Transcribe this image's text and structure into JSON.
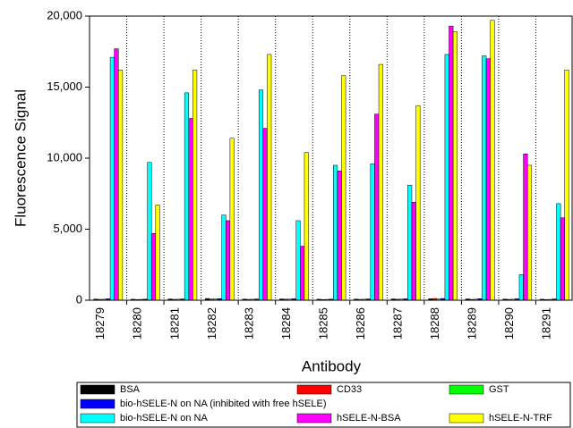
{
  "chart_data": {
    "type": "bar",
    "x_label": "Antibody",
    "y_label": "Fluorescence Signal",
    "categories": [
      "18279",
      "18280",
      "18281",
      "18282",
      "18283",
      "18284",
      "18285",
      "18286",
      "18287",
      "18288",
      "18289",
      "18290",
      "18291"
    ],
    "series": [
      {
        "name": "BSA",
        "color": "#000000",
        "values": [
          80,
          70,
          90,
          120,
          80,
          90,
          70,
          80,
          90,
          100,
          90,
          80,
          70
        ]
      },
      {
        "name": "CD33",
        "color": "#ff0000",
        "values": [
          60,
          50,
          60,
          80,
          60,
          70,
          50,
          60,
          70,
          120,
          60,
          60,
          50
        ]
      },
      {
        "name": "GST",
        "color": "#00ff00",
        "values": [
          70,
          60,
          70,
          90,
          70,
          80,
          60,
          70,
          80,
          90,
          70,
          70,
          60
        ]
      },
      {
        "name": "bio-hSELE-N on NA (inhibited with free hSELE)",
        "color": "#0000ff",
        "values": [
          100,
          80,
          90,
          110,
          90,
          100,
          80,
          90,
          100,
          120,
          110,
          100,
          90
        ]
      },
      {
        "name": "bio-hSELE-N on NA",
        "color": "#00ffff",
        "values": [
          17100,
          9700,
          14600,
          6000,
          14800,
          5600,
          9500,
          9600,
          8100,
          17300,
          17200,
          1800,
          6800
        ]
      },
      {
        "name": "hSELE-N-BSA",
        "color": "#ff00ff",
        "values": [
          17700,
          4700,
          12800,
          5600,
          12100,
          3800,
          9100,
          13100,
          6900,
          19300,
          17000,
          10300,
          5800
        ]
      },
      {
        "name": "hSELE-N-TRF",
        "color": "#ffff00",
        "values": [
          16200,
          6700,
          16200,
          11400,
          17300,
          10400,
          15800,
          16600,
          13700,
          18900,
          19700,
          9500,
          16200
        ]
      }
    ],
    "ylim": [
      0,
      20000
    ],
    "yticks": [
      0,
      {
        "value": 5000,
        "label": "5,000"
      },
      {
        "value": 10000,
        "label": "10,000"
      },
      {
        "value": 15000,
        "label": "15,000"
      },
      {
        "value": 20000,
        "label": "20,000"
      }
    ]
  }
}
